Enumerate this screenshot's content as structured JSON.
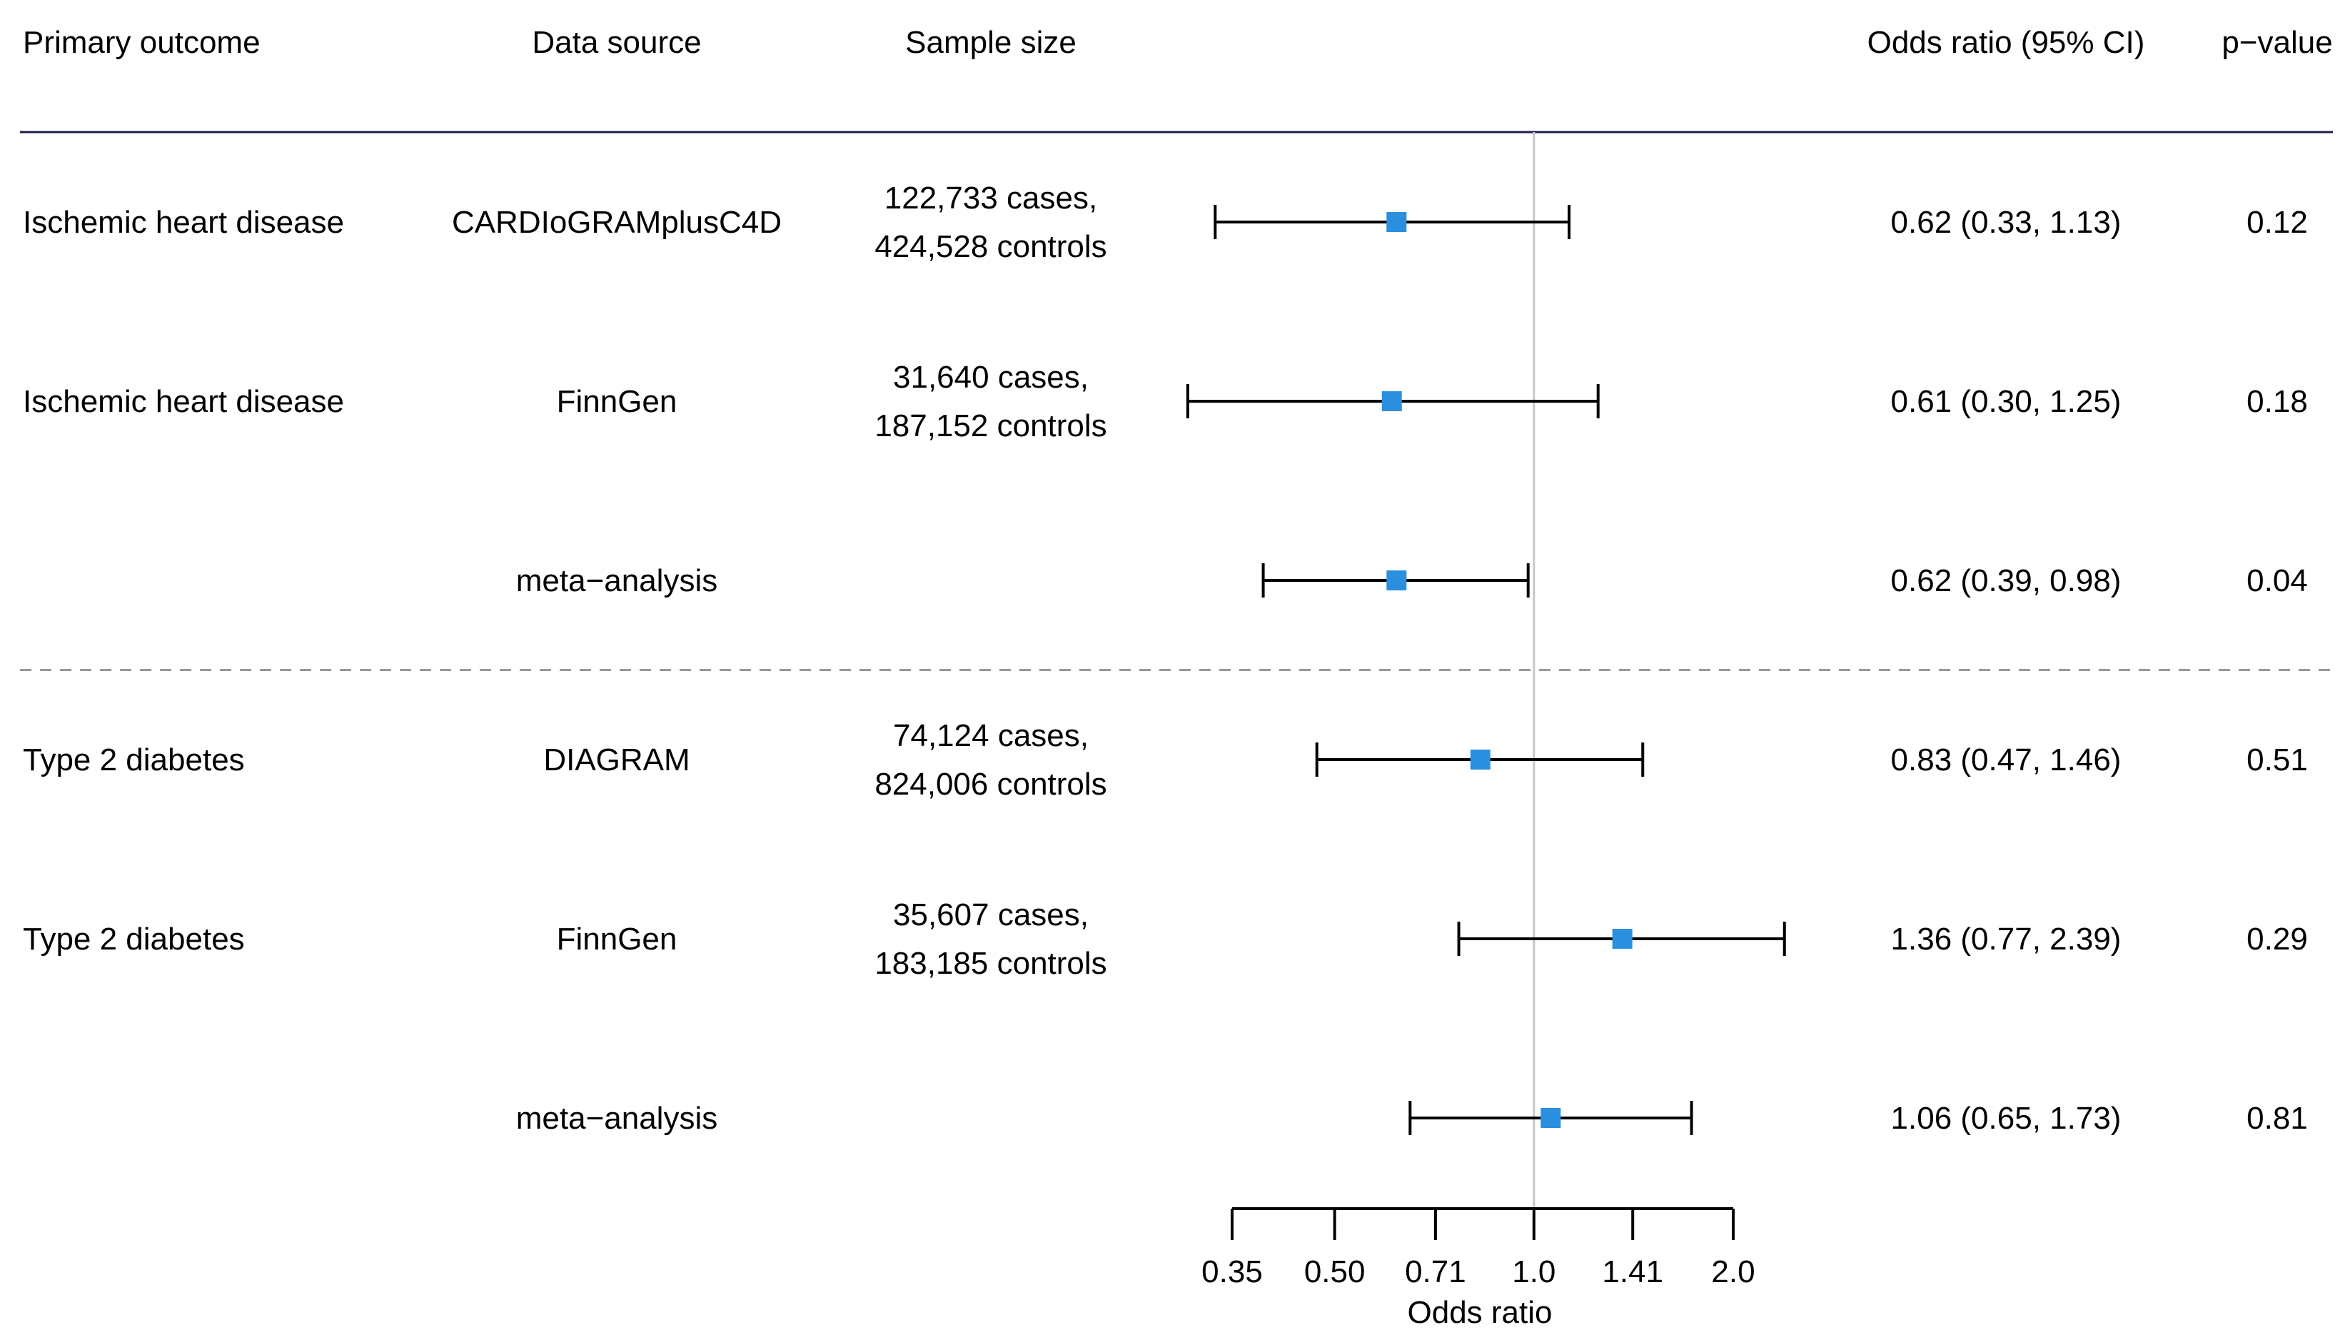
{
  "chart_data": {
    "type": "forest",
    "columns": {
      "outcome": "Primary outcome",
      "source": "Data source",
      "sample": "Sample size",
      "or": "Odds ratio (95% CI)",
      "p": "p−value"
    },
    "rows": [
      {
        "outcome": "Ischemic heart disease",
        "source": "CARDIoGRAMplusC4D",
        "sample_line1": "122,733 cases,",
        "sample_line2": "424,528 controls",
        "or": 0.62,
        "lower": 0.33,
        "upper": 1.13,
        "or_text": "0.62 (0.33, 1.13)",
        "p": "0.12"
      },
      {
        "outcome": "Ischemic heart disease",
        "source": "FinnGen",
        "sample_line1": "31,640 cases,",
        "sample_line2": "187,152 controls",
        "or": 0.61,
        "lower": 0.3,
        "upper": 1.25,
        "or_text": "0.61 (0.30, 1.25)",
        "p": "0.18"
      },
      {
        "outcome": "",
        "source": "meta−analysis",
        "sample_line1": "",
        "sample_line2": "",
        "or": 0.62,
        "lower": 0.39,
        "upper": 0.98,
        "or_text": "0.62 (0.39, 0.98)",
        "p": "0.04"
      },
      {
        "outcome": "Type 2 diabetes",
        "source": "DIAGRAM",
        "sample_line1": "74,124 cases,",
        "sample_line2": "824,006 controls",
        "or": 0.83,
        "lower": 0.47,
        "upper": 1.46,
        "or_text": "0.83 (0.47, 1.46)",
        "p": "0.51"
      },
      {
        "outcome": "Type 2 diabetes",
        "source": "FinnGen",
        "sample_line1": "35,607 cases,",
        "sample_line2": "183,185 controls",
        "or": 1.36,
        "lower": 0.77,
        "upper": 2.39,
        "or_text": "1.36 (0.77, 2.39)",
        "p": "0.29"
      },
      {
        "outcome": "",
        "source": "meta−analysis",
        "sample_line1": "",
        "sample_line2": "",
        "or": 1.06,
        "lower": 0.65,
        "upper": 1.73,
        "or_text": "1.06 (0.65, 1.73)",
        "p": "0.81"
      }
    ],
    "x_axis": {
      "label": "Odds ratio",
      "scale": "log",
      "ticks": [
        0.35,
        0.5,
        0.71,
        1.0,
        1.41,
        2.0
      ],
      "tick_labels": [
        "0.35",
        "0.50",
        "0.71",
        "1.0",
        "1.41",
        "2.0"
      ],
      "reference": 1.0
    },
    "group_separator_after_row": 2,
    "colors": {
      "marker": "#2b8fdf",
      "ci_line": "#000000",
      "header_rule": "#1c1c4a",
      "reference_line": "#c8c8c8",
      "separator": "#999999"
    }
  }
}
